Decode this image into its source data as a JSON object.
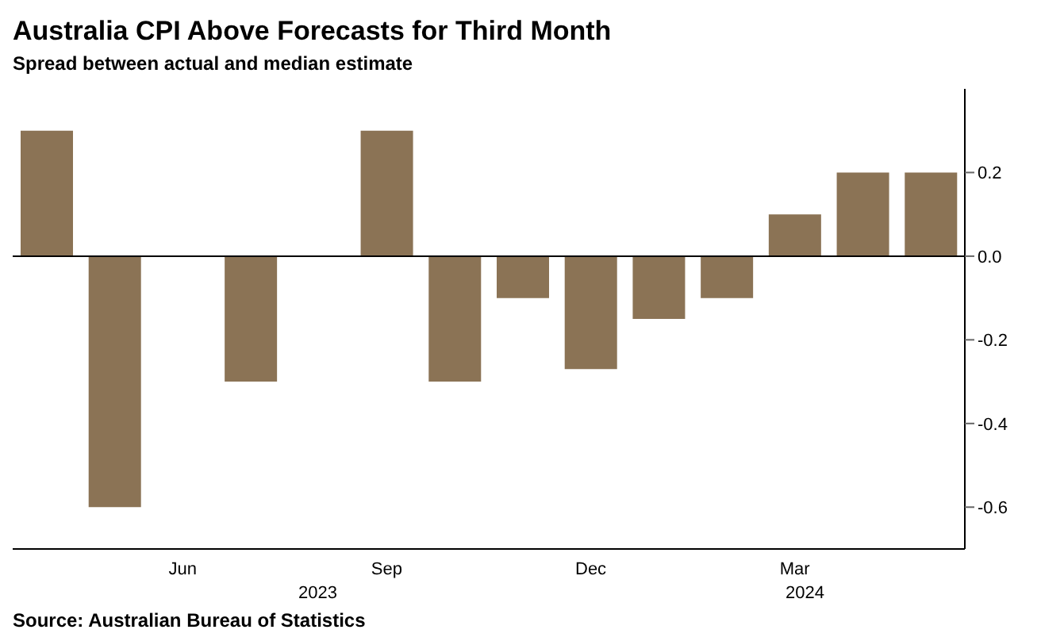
{
  "chart_data": {
    "type": "bar",
    "title": "Australia CPI Above Forecasts for Third Month",
    "subtitle": "Spread between actual and median estimate",
    "categories": [
      null,
      null,
      "Jun",
      null,
      null,
      "Sep",
      null,
      null,
      "Dec",
      null,
      null,
      "Mar",
      null,
      null
    ],
    "values": [
      0.3,
      -0.6,
      0,
      -0.3,
      0,
      0.3,
      -0.3,
      -0.1,
      -0.27,
      -0.15,
      -0.1,
      0.1,
      0.2,
      0.2
    ],
    "color": "#8b7355",
    "ylim": [
      -0.7,
      0.4
    ],
    "yticks": [
      {
        "value": -0.6,
        "label": "-0.6"
      },
      {
        "value": -0.4,
        "label": "-0.4"
      },
      {
        "value": -0.2,
        "label": "-0.2"
      },
      {
        "value": 0,
        "label": "0.0"
      },
      {
        "value": 0.2,
        "label": "0.2"
      }
    ],
    "ref_lines": [
      {
        "axis": "y",
        "value": 0
      }
    ],
    "annotations": [
      "2023",
      "2024",
      "Source: Australian Bureau of Statistics"
    ]
  }
}
